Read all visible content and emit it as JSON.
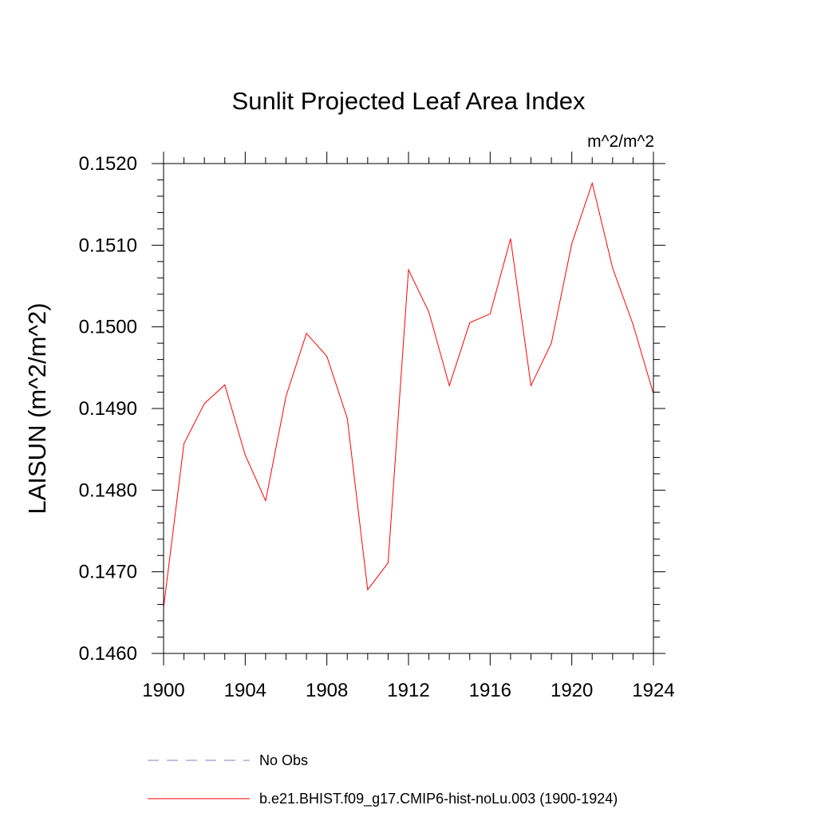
{
  "chart_data": {
    "type": "line",
    "title": "Sunlit Projected Leaf Area Index",
    "units_label": "m^2/m^2",
    "xlabel": "",
    "ylabel": "LAISUN  (m^2/m^2)",
    "xlim": [
      1900,
      1924
    ],
    "ylim": [
      0.146,
      0.152
    ],
    "x_ticks": [
      "1900",
      "1904",
      "1908",
      "1912",
      "1916",
      "1920",
      "1924"
    ],
    "x_tick_values": [
      1900,
      1904,
      1908,
      1912,
      1916,
      1920,
      1924
    ],
    "y_ticks": [
      "0.1460",
      "0.1470",
      "0.1480",
      "0.1490",
      "0.1500",
      "0.1510",
      "0.1520"
    ],
    "y_tick_values": [
      0.146,
      0.147,
      0.148,
      0.149,
      0.15,
      0.151,
      0.152
    ],
    "x_minor_step": 1,
    "y_minor_step": 0.0002,
    "grid": false,
    "legend_position": "bottom",
    "series": [
      {
        "name": "b.e21.BHIST.f09_g17.CMIP6-hist-noLu.003 (1900-1924)",
        "color": "#ff0000",
        "style": "solid",
        "x": [
          1900,
          1901,
          1902,
          1903,
          1904,
          1905,
          1906,
          1907,
          1908,
          1909,
          1910,
          1911,
          1912,
          1913,
          1914,
          1915,
          1916,
          1917,
          1918,
          1919,
          1920,
          1921,
          1922,
          1923,
          1924
        ],
        "y": [
          0.14656,
          0.14857,
          0.14906,
          0.14929,
          0.14843,
          0.14787,
          0.14915,
          0.14992,
          0.14964,
          0.14888,
          0.14678,
          0.14711,
          0.1507,
          0.15018,
          0.14928,
          0.15005,
          0.15016,
          0.15108,
          0.14928,
          0.1498,
          0.15102,
          0.15176,
          0.15072,
          0.15003,
          0.14918
        ]
      }
    ],
    "legend": [
      {
        "label": "No Obs",
        "color": "#8080c0",
        "style": "dashed"
      },
      {
        "label": "b.e21.BHIST.f09_g17.CMIP6-hist-noLu.003 (1900-1924)",
        "color": "#ff0000",
        "style": "solid"
      }
    ]
  }
}
